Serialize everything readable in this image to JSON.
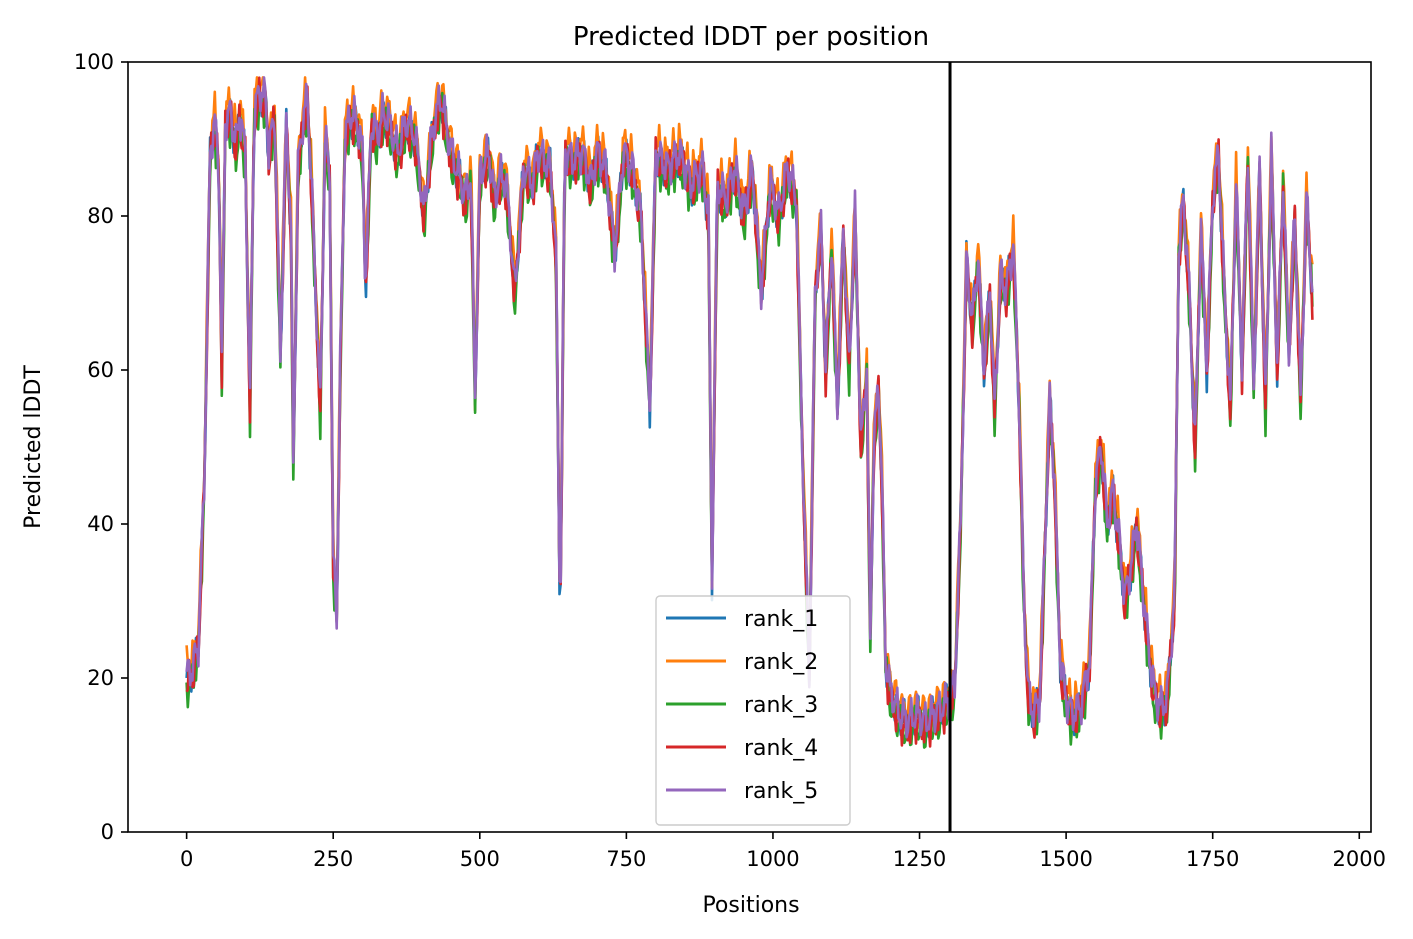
{
  "chart_data": {
    "type": "line",
    "title": "Predicted lDDT per position",
    "xlabel": "Positions",
    "ylabel": "Predicted lDDT",
    "xlim": [
      -100,
      2020
    ],
    "ylim": [
      0,
      100
    ],
    "x_ticks": [
      0,
      250,
      500,
      750,
      1000,
      1250,
      1500,
      1750,
      2000
    ],
    "y_ticks": [
      0,
      20,
      40,
      60,
      80,
      100
    ],
    "grid": false,
    "legend_position": "bottom-center",
    "vertical_lines": [
      1302
    ],
    "vline_color": "#000000",
    "base_profile": [
      [
        0,
        20
      ],
      [
        10,
        21
      ],
      [
        20,
        24
      ],
      [
        30,
        45
      ],
      [
        40,
        88
      ],
      [
        48,
        92
      ],
      [
        55,
        86
      ],
      [
        60,
        60
      ],
      [
        66,
        92
      ],
      [
        75,
        93
      ],
      [
        85,
        89
      ],
      [
        90,
        93
      ],
      [
        100,
        88
      ],
      [
        108,
        55
      ],
      [
        115,
        93
      ],
      [
        125,
        96
      ],
      [
        135,
        95
      ],
      [
        140,
        88
      ],
      [
        150,
        93
      ],
      [
        160,
        62
      ],
      [
        170,
        92
      ],
      [
        178,
        78
      ],
      [
        182,
        47
      ],
      [
        190,
        86
      ],
      [
        200,
        93
      ],
      [
        206,
        95
      ],
      [
        212,
        86
      ],
      [
        220,
        70
      ],
      [
        228,
        55
      ],
      [
        236,
        90
      ],
      [
        244,
        85
      ],
      [
        250,
        35
      ],
      [
        256,
        28
      ],
      [
        262,
        60
      ],
      [
        270,
        90
      ],
      [
        280,
        93
      ],
      [
        290,
        92
      ],
      [
        300,
        88
      ],
      [
        305,
        70
      ],
      [
        315,
        92
      ],
      [
        325,
        90
      ],
      [
        335,
        93
      ],
      [
        345,
        92
      ],
      [
        360,
        88
      ],
      [
        375,
        92
      ],
      [
        390,
        90
      ],
      [
        405,
        80
      ],
      [
        415,
        88
      ],
      [
        425,
        93
      ],
      [
        435,
        95
      ],
      [
        445,
        90
      ],
      [
        455,
        87
      ],
      [
        465,
        85
      ],
      [
        475,
        82
      ],
      [
        485,
        85
      ],
      [
        492,
        56
      ],
      [
        500,
        85
      ],
      [
        515,
        88
      ],
      [
        525,
        82
      ],
      [
        535,
        85
      ],
      [
        545,
        84
      ],
      [
        560,
        70
      ],
      [
        575,
        86
      ],
      [
        590,
        84
      ],
      [
        600,
        88
      ],
      [
        620,
        86
      ],
      [
        630,
        75
      ],
      [
        637,
        26
      ],
      [
        645,
        88
      ],
      [
        660,
        87
      ],
      [
        675,
        88
      ],
      [
        690,
        84
      ],
      [
        700,
        88
      ],
      [
        715,
        86
      ],
      [
        730,
        75
      ],
      [
        745,
        88
      ],
      [
        760,
        86
      ],
      [
        775,
        80
      ],
      [
        790,
        55
      ],
      [
        800,
        88
      ],
      [
        820,
        86
      ],
      [
        840,
        88
      ],
      [
        860,
        84
      ],
      [
        880,
        86
      ],
      [
        890,
        80
      ],
      [
        896,
        32
      ],
      [
        905,
        84
      ],
      [
        920,
        82
      ],
      [
        935,
        86
      ],
      [
        950,
        80
      ],
      [
        965,
        86
      ],
      [
        980,
        70
      ],
      [
        995,
        84
      ],
      [
        1010,
        80
      ],
      [
        1025,
        86
      ],
      [
        1040,
        82
      ],
      [
        1050,
        50
      ],
      [
        1058,
        30
      ],
      [
        1062,
        20
      ],
      [
        1072,
        70
      ],
      [
        1082,
        78
      ],
      [
        1090,
        60
      ],
      [
        1100,
        76
      ],
      [
        1110,
        55
      ],
      [
        1120,
        78
      ],
      [
        1130,
        60
      ],
      [
        1140,
        80
      ],
      [
        1150,
        50
      ],
      [
        1160,
        60
      ],
      [
        1166,
        25
      ],
      [
        1172,
        50
      ],
      [
        1180,
        58
      ],
      [
        1186,
        45
      ],
      [
        1192,
        22
      ],
      [
        1200,
        18
      ],
      [
        1215,
        15
      ],
      [
        1230,
        14
      ],
      [
        1245,
        15
      ],
      [
        1260,
        14
      ],
      [
        1275,
        15
      ],
      [
        1290,
        16
      ],
      [
        1302,
        17
      ],
      [
        1310,
        19
      ],
      [
        1320,
        40
      ],
      [
        1330,
        74
      ],
      [
        1340,
        66
      ],
      [
        1350,
        74
      ],
      [
        1360,
        60
      ],
      [
        1370,
        70
      ],
      [
        1378,
        55
      ],
      [
        1388,
        72
      ],
      [
        1398,
        70
      ],
      [
        1410,
        76
      ],
      [
        1420,
        55
      ],
      [
        1428,
        30
      ],
      [
        1435,
        18
      ],
      [
        1445,
        15
      ],
      [
        1455,
        17
      ],
      [
        1465,
        40
      ],
      [
        1472,
        56
      ],
      [
        1480,
        46
      ],
      [
        1490,
        22
      ],
      [
        1500,
        17
      ],
      [
        1510,
        15
      ],
      [
        1525,
        16
      ],
      [
        1540,
        22
      ],
      [
        1550,
        45
      ],
      [
        1560,
        50
      ],
      [
        1570,
        40
      ],
      [
        1580,
        44
      ],
      [
        1590,
        38
      ],
      [
        1600,
        30
      ],
      [
        1610,
        34
      ],
      [
        1620,
        40
      ],
      [
        1630,
        32
      ],
      [
        1640,
        24
      ],
      [
        1650,
        18
      ],
      [
        1660,
        16
      ],
      [
        1672,
        17
      ],
      [
        1685,
        30
      ],
      [
        1692,
        75
      ],
      [
        1700,
        82
      ],
      [
        1710,
        70
      ],
      [
        1720,
        50
      ],
      [
        1730,
        78
      ],
      [
        1740,
        60
      ],
      [
        1750,
        82
      ],
      [
        1760,
        88
      ],
      [
        1770,
        70
      ],
      [
        1780,
        55
      ],
      [
        1790,
        84
      ],
      [
        1800,
        60
      ],
      [
        1810,
        88
      ],
      [
        1820,
        58
      ],
      [
        1830,
        86
      ],
      [
        1840,
        55
      ],
      [
        1850,
        88
      ],
      [
        1860,
        60
      ],
      [
        1870,
        84
      ],
      [
        1880,
        62
      ],
      [
        1890,
        80
      ],
      [
        1900,
        56
      ],
      [
        1910,
        82
      ],
      [
        1920,
        70
      ]
    ],
    "series": [
      {
        "name": "rank_1",
        "color": "#1f77b4",
        "offset": 0.0
      },
      {
        "name": "rank_2",
        "color": "#ff7f0e",
        "offset": 1.6
      },
      {
        "name": "rank_3",
        "color": "#2ca02c",
        "offset": -1.2
      },
      {
        "name": "rank_4",
        "color": "#d62728",
        "offset": -0.6
      },
      {
        "name": "rank_5",
        "color": "#9467bd",
        "offset": 0.4
      }
    ]
  }
}
